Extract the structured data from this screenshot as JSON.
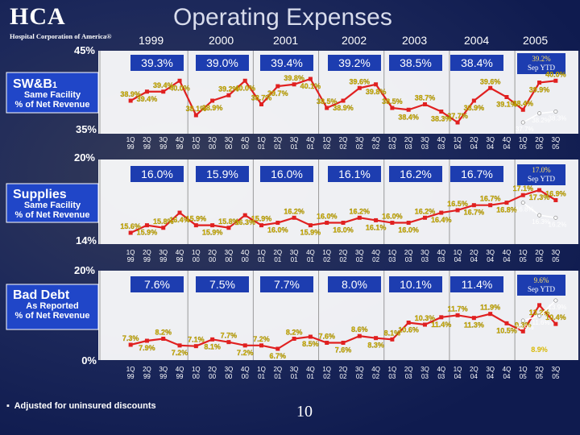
{
  "header": {
    "logo_text": "HCA",
    "logo_sub": "Hospital Corporation of America®",
    "title": "Operating Expenses"
  },
  "years": [
    "1999",
    "2000",
    "2001",
    "2002",
    "2003",
    "2004",
    "2005"
  ],
  "quarters": [
    "1Q 99",
    "2Q 99",
    "3Q 99",
    "4Q 99",
    "1Q 00",
    "2Q 00",
    "3Q 00",
    "4Q 00",
    "1Q 01",
    "2Q 01",
    "3Q 01",
    "4Q 01",
    "1Q 02",
    "2Q 02",
    "3Q 02",
    "4Q 02",
    "1Q 03",
    "2Q 03",
    "3Q 03",
    "4Q 03",
    "1Q 04",
    "2Q 04",
    "3Q 04",
    "4Q 04",
    "1Q 05",
    "2Q 05",
    "3Q 05"
  ],
  "colors": {
    "background": "#0f1b4f",
    "annual_box": "#1d3db0",
    "line": "#e02020",
    "ytd_line": "#ffffff",
    "label": "#ffff00",
    "panel": "#ffffff",
    "grid": "#8c8c8c",
    "side_box": "#2046c8"
  },
  "footnote": "Adjusted for uninsured discounts",
  "page_number": "10",
  "chart_data": [
    {
      "type": "line",
      "name": "SW&B",
      "title": "SW&B",
      "title_superscript": "1",
      "subtitle": "Same Facility % of Net Revenue",
      "ylim": [
        35,
        45
      ],
      "ymax_label": "45%",
      "ymin_label": "35%",
      "annual": [
        "39.3%",
        "39.0%",
        "39.4%",
        "39.2%",
        "38.5%",
        "38.4%"
      ],
      "ytd_label": "39.2% Sep YTD",
      "values": [
        38.9,
        39.4,
        39.4,
        40.0,
        38.1,
        38.9,
        39.2,
        40.0,
        38.7,
        39.7,
        39.8,
        40.1,
        38.5,
        38.9,
        39.6,
        39.8,
        38.5,
        38.4,
        38.7,
        38.3,
        37.7,
        38.9,
        39.6,
        39.1,
        38.4,
        39.9,
        40.0
      ],
      "labels": [
        "38.9%",
        "39.4%",
        "39.4%",
        "40.0%",
        "38.1%",
        "38.9%",
        "39.2%",
        "40.0%",
        "38.7%",
        "39.7%",
        "39.8%",
        "40.1%",
        "38.5%",
        "38.9%",
        "39.6%",
        "39.8%",
        "38.5%",
        "38.4%",
        "38.7%",
        "38.3%",
        "37.7%",
        "38.9%",
        "39.6%",
        "39.1%",
        "38.4%",
        "39.9%",
        "40.0%"
      ],
      "ytd_values": [
        37.7,
        38.2,
        38.3
      ],
      "ytd_labels": [
        "37.7%",
        "38.2%",
        "38.3%"
      ]
    },
    {
      "type": "line",
      "name": "Supplies",
      "title": "Supplies",
      "subtitle": "Same Facility % of Net Revenue",
      "ylim": [
        14,
        20
      ],
      "ymax_label": "20%",
      "ymin_label": "14%",
      "annual": [
        "16.0%",
        "15.9%",
        "16.0%",
        "16.1%",
        "16.2%",
        "16.7%"
      ],
      "ytd_label": "17.0% Sep YTD",
      "values": [
        15.6,
        15.9,
        15.8,
        16.4,
        15.9,
        15.9,
        15.8,
        16.3,
        15.9,
        16.0,
        16.2,
        15.9,
        16.0,
        16.0,
        16.2,
        16.1,
        16.0,
        16.0,
        16.2,
        16.4,
        16.5,
        16.7,
        16.7,
        16.8,
        17.1,
        17.3,
        16.9
      ],
      "labels": [
        "15.6%",
        "15.9%",
        "15.8%",
        "16.4%",
        "15.9%",
        "15.9%",
        "15.8%",
        "16.3%",
        "15.9%",
        "16.0%",
        "16.2%",
        "15.9%",
        "16.0%",
        "16.0%",
        "16.2%",
        "16.1%",
        "16.0%",
        "16.0%",
        "16.2%",
        "16.4%",
        "16.5%",
        "16.7%",
        "16.7%",
        "16.8%",
        "17.1%",
        "17.3%",
        "16.9%"
      ],
      "ytd_values": [
        16.8,
        16.3,
        16.2
      ],
      "ytd_labels": [
        "16.8%",
        "16.3%",
        "16.2%"
      ]
    },
    {
      "type": "line",
      "name": "Bad Debt",
      "title": "Bad Debt",
      "subtitle": "As Reported % of Net Revenue",
      "ylim": [
        0,
        20
      ],
      "ymax_label": "20%",
      "ymin_label": "0%",
      "annual": [
        "7.6%",
        "7.5%",
        "7.7%",
        "8.0%",
        "10.1%",
        "11.4%"
      ],
      "ytd_label": "9.6% Sep YTD",
      "values": [
        7.3,
        7.9,
        8.2,
        7.2,
        7.1,
        8.1,
        7.7,
        7.2,
        7.2,
        6.7,
        8.2,
        8.5,
        7.6,
        7.6,
        8.6,
        8.3,
        8.1,
        10.6,
        10.3,
        11.4,
        11.7,
        11.3,
        11.9,
        10.5,
        9.3,
        13.2,
        10.4
      ],
      "labels": [
        "7.3%",
        "7.9%",
        "8.2%",
        "7.2%",
        "7.1%",
        "8.1%",
        "7.7%",
        "7.2%",
        "7.2%",
        "6.7%",
        "8.2%",
        "8.5%",
        "7.6%",
        "7.6%",
        "8.6%",
        "8.3%",
        "8.1%",
        "10.6%",
        "10.3%",
        "11.4%",
        "11.7%",
        "11.3%",
        "11.9%",
        "10.5%",
        "9.3%",
        "13.2%",
        "10.4%"
      ],
      "ytd_values": [
        10.9,
        11.6,
        13.9
      ],
      "ytd_labels": [
        "10.9%",
        "11.6%",
        "13.9%"
      ],
      "extra_labels": [
        "8.9%"
      ]
    }
  ]
}
